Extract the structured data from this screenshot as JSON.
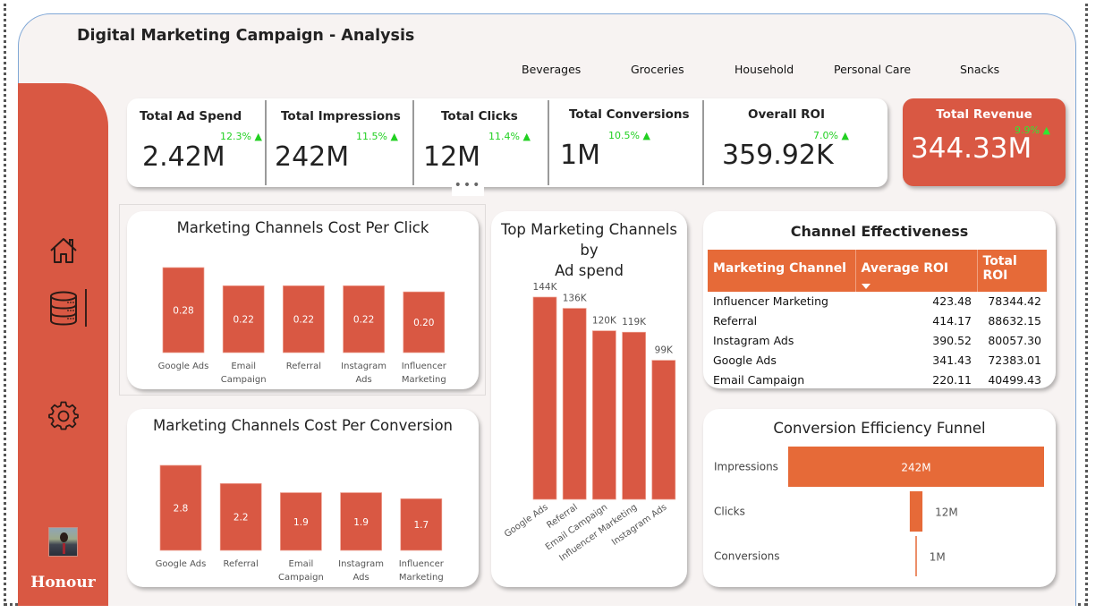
{
  "header": {
    "title": "Digital Marketing Campaign - Analysis",
    "category_slicer": [
      "Beverages",
      "Groceries",
      "Household",
      "Personal Care",
      "Snacks"
    ]
  },
  "sidebar": {
    "items": [
      {
        "icon": "home-icon"
      },
      {
        "icon": "database-icon",
        "active": true
      },
      {
        "icon": "gear-icon"
      }
    ],
    "user": {
      "name": "Honour",
      "avatar": "profile-photo"
    }
  },
  "kpis": [
    {
      "label": "Total Ad Spend",
      "value": "2.42M",
      "delta": "12.3% ▲"
    },
    {
      "label": "Total Impressions",
      "value": "242M",
      "delta": "11.5% ▲"
    },
    {
      "label": "Total Clicks",
      "value": "12M",
      "delta": "11.4% ▲"
    },
    {
      "label": "Total Conversions",
      "value": "1M",
      "delta": "10.5% ▲"
    },
    {
      "label": "Overall ROI",
      "value": "359.92K",
      "delta": "7.0% ▲"
    }
  ],
  "revenue": {
    "label": "Total Revenue",
    "value": "344.33M",
    "delta": "9.9% ▲"
  },
  "more_options": "•••",
  "colors": {
    "accent": "#d95843",
    "table_header": "#e66a38",
    "funnel": "#e66a38",
    "positive": "#22d022"
  },
  "chart_data": [
    {
      "id": "cpc",
      "type": "bar",
      "title": "Marketing Channels Cost Per Click",
      "categories": [
        "Google Ads",
        "Email Campaign",
        "Referral",
        "Instagram Ads",
        "Influencer Marketing"
      ],
      "category_lines": [
        [
          "Google Ads"
        ],
        [
          "Email",
          "Campaign"
        ],
        [
          "Referral"
        ],
        [
          "Instagram",
          "Ads"
        ],
        [
          "Influencer",
          "Marketing"
        ]
      ],
      "values": [
        0.28,
        0.22,
        0.22,
        0.22,
        0.2
      ],
      "labels": [
        "0.28",
        "0.22",
        "0.22",
        "0.22",
        "0.20"
      ],
      "xlabel": "",
      "ylabel": "",
      "ylim": [
        0,
        0.28
      ],
      "grid": false
    },
    {
      "id": "cpconv",
      "type": "bar",
      "title": "Marketing Channels Cost Per Conversion",
      "categories": [
        "Google Ads",
        "Referral",
        "Email Campaign",
        "Instagram Ads",
        "Influencer Marketing"
      ],
      "category_lines": [
        [
          "Google Ads"
        ],
        [
          "Referral"
        ],
        [
          "Email",
          "Campaign"
        ],
        [
          "Instagram",
          "Ads"
        ],
        [
          "Influencer",
          "Marketing"
        ]
      ],
      "values": [
        2.8,
        2.2,
        1.9,
        1.9,
        1.7
      ],
      "labels": [
        "2.8",
        "2.2",
        "1.9",
        "1.9",
        "1.7"
      ],
      "xlabel": "",
      "ylabel": "",
      "ylim": [
        0,
        2.8
      ],
      "grid": false
    },
    {
      "id": "adspend",
      "type": "bar",
      "title": "Top Marketing Channels by Ad spend",
      "title_lines": [
        "Top Marketing Channels by",
        "Ad spend"
      ],
      "categories": [
        "Google Ads",
        "Referral",
        "Email Campaign",
        "Influencer Marketing",
        "Instagram Ads"
      ],
      "values": [
        144000,
        136000,
        120000,
        119000,
        99000
      ],
      "labels": [
        "144K",
        "136K",
        "120K",
        "119K",
        "99K"
      ],
      "xlabel": "",
      "ylabel": "",
      "ylim": [
        0,
        144000
      ],
      "grid": false
    },
    {
      "id": "funnel",
      "type": "bar",
      "orientation": "funnel",
      "title": "Conversion Efficiency Funnel",
      "categories": [
        "Impressions",
        "Clicks",
        "Conversions"
      ],
      "values": [
        242000000,
        12000000,
        1000000
      ],
      "labels": [
        "242M",
        "12M",
        "1M"
      ],
      "xlabel": "",
      "ylabel": "",
      "grid": false
    },
    {
      "id": "effectiveness",
      "type": "table",
      "title": "Channel Effectiveness",
      "columns": [
        "Marketing Channel",
        "Average ROI",
        "Total ROI"
      ],
      "sort_column": "Average ROI",
      "sort_direction": "descending",
      "rows": [
        [
          "Influencer Marketing",
          "423.48",
          "78344.42"
        ],
        [
          "Referral",
          "414.17",
          "88632.15"
        ],
        [
          "Instagram Ads",
          "390.52",
          "80057.30"
        ],
        [
          "Google Ads",
          "341.43",
          "72383.01"
        ],
        [
          "Email Campaign",
          "220.11",
          "40499.43"
        ]
      ]
    }
  ]
}
